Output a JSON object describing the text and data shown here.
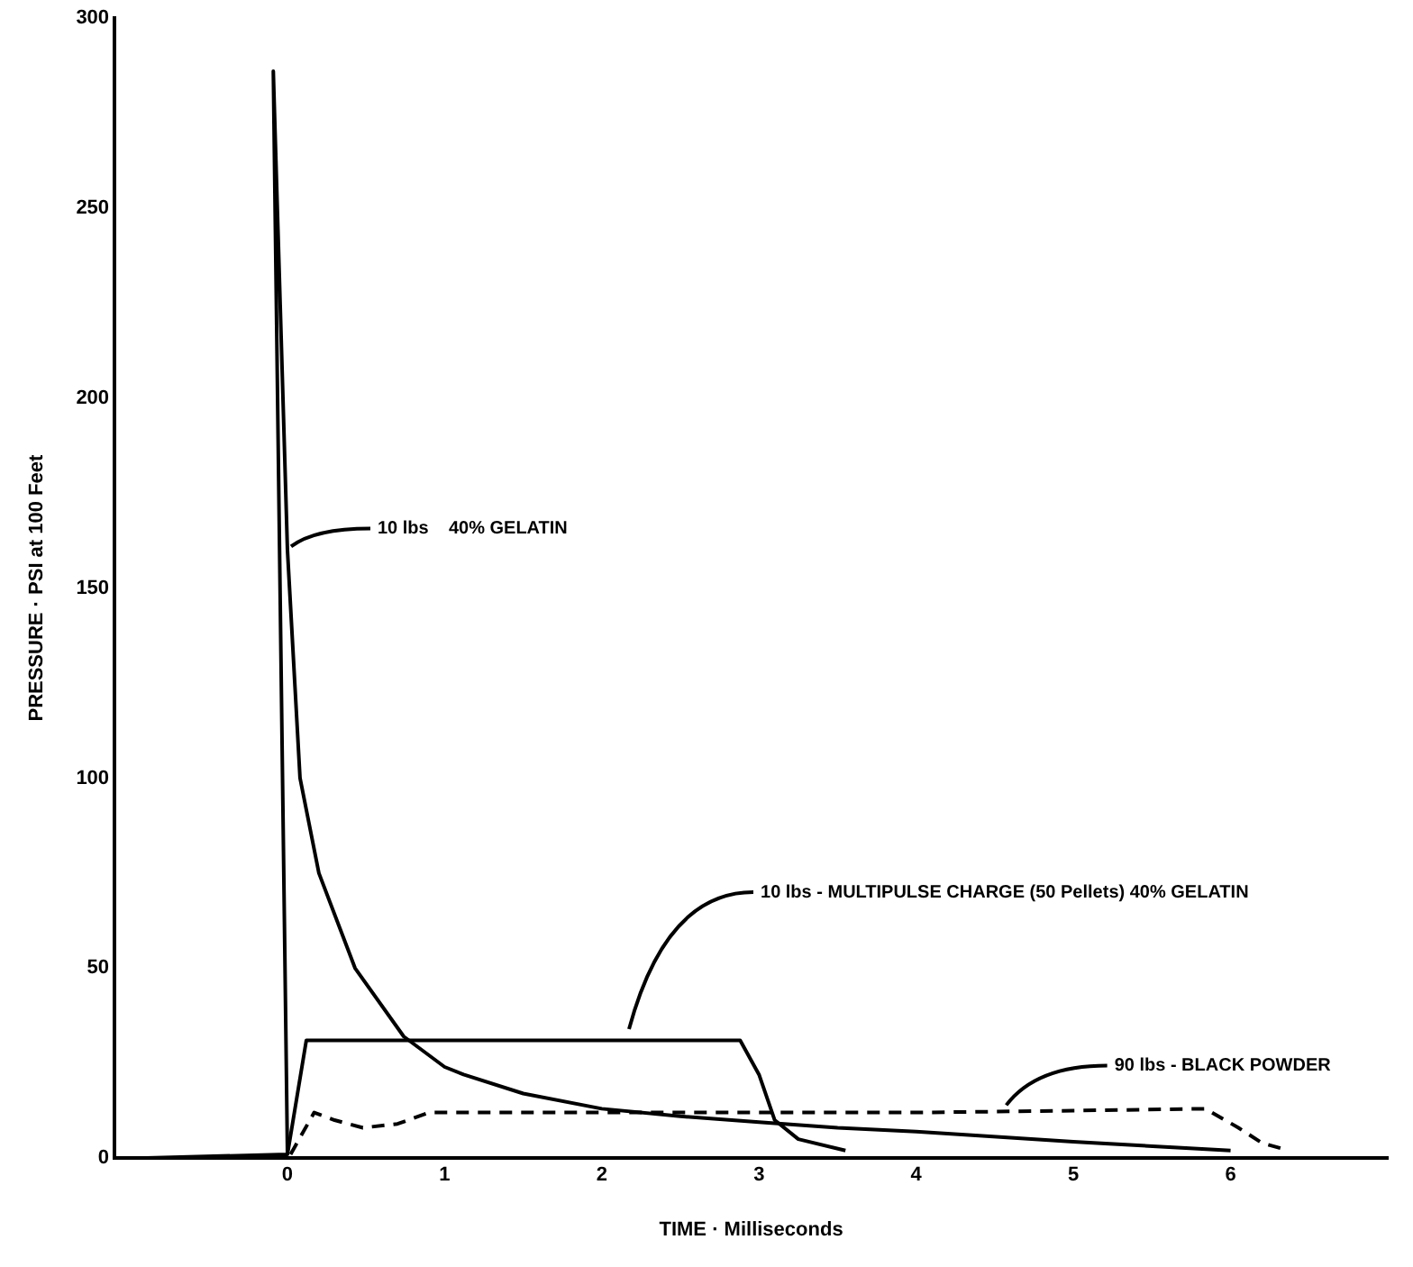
{
  "chart_data": {
    "type": "line",
    "xlabel": "TIME · Milliseconds",
    "ylabel": "PRESSURE · PSI at 100 Feet",
    "xlim": [
      -1.1,
      7
    ],
    "xticks": [
      0,
      1,
      2,
      3,
      4,
      5,
      6
    ],
    "ylim": [
      0,
      300
    ],
    "yticks": [
      0,
      50,
      100,
      150,
      200,
      250,
      300
    ],
    "grid": false,
    "legend": false,
    "marker": "none",
    "series": [
      {
        "color": "#000000",
        "line_style": "solid",
        "x": [
          -0.95,
          0,
          -0.09,
          0,
          0.08,
          0.2,
          0.43,
          0.74,
          1,
          1.12,
          1.5,
          2,
          2.5,
          3,
          3.5,
          4,
          5,
          6
        ],
        "values": [
          0,
          1,
          286,
          160,
          100,
          75,
          50,
          32,
          24,
          22,
          17,
          13,
          11,
          9.5,
          8,
          7,
          4.3,
          2
        ]
      },
      {
        "color": "#000000",
        "line_style": "solid",
        "x": [
          0,
          0.12,
          0.5,
          1,
          1.5,
          2,
          2.5,
          2.88,
          3,
          3.1,
          3.25,
          3.55
        ],
        "values": [
          1,
          31,
          31,
          31,
          31,
          31,
          31,
          31,
          22,
          10,
          5,
          2
        ]
      },
      {
        "color": "#000000",
        "line_style": "dashed",
        "x": [
          0.02,
          0.17,
          0.3,
          0.48,
          0.7,
          0.9,
          2,
          3,
          4,
          5,
          5.84,
          6.05,
          6.2,
          6.37
        ],
        "values": [
          1,
          12,
          10,
          8,
          9,
          12,
          12,
          12,
          12,
          12.5,
          13,
          8,
          4,
          2
        ]
      }
    ],
    "annotations": [
      {
        "text": "10 lbs    40% GELATIN",
        "x": 0,
        "y": 160
      },
      {
        "text": "10 lbs - MULTIPULSE CHARGE (50 Pellets) 40% GELATIN",
        "x": 2.15,
        "y": 33
      },
      {
        "text": "90 lbs - BLACK POWDER",
        "x": 4.55,
        "y": 13
      }
    ]
  }
}
